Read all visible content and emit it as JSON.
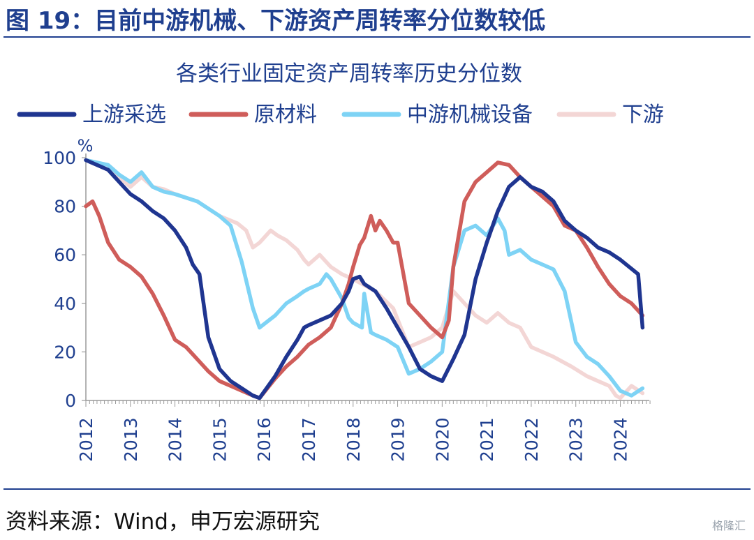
{
  "figure": {
    "title": "图 19：目前中游机械、下游资产周转率分位数较低",
    "source": "资料来源：Wind，申万宏源研究",
    "watermark": "格隆汇"
  },
  "chart_data": {
    "type": "line",
    "title": "各类行业固定资产周转率历史分位数",
    "xlabel": "",
    "ylabel": "%",
    "xlim": [
      2012,
      2024.65
    ],
    "ylim": [
      0,
      100
    ],
    "x_ticks": [
      "2012",
      "2013",
      "2014",
      "2015",
      "2016",
      "2017",
      "2018",
      "2019",
      "2020",
      "2021",
      "2022",
      "2023",
      "2024"
    ],
    "y_ticks": [
      "0",
      "20",
      "40",
      "60",
      "80",
      "100"
    ],
    "legend": "top",
    "grid": false,
    "series": [
      {
        "name": "上游采选",
        "color": "#1f3590",
        "x": [
          2012.0,
          2012.5,
          2012.75,
          2013.0,
          2013.25,
          2013.5,
          2013.75,
          2014.0,
          2014.25,
          2014.4,
          2014.55,
          2014.75,
          2015.0,
          2015.25,
          2015.5,
          2015.75,
          2015.9,
          2016.25,
          2016.5,
          2016.75,
          2016.9,
          2017.0,
          2017.25,
          2017.5,
          2017.75,
          2017.9,
          2018.0,
          2018.15,
          2018.25,
          2018.5,
          2018.75,
          2019.0,
          2019.25,
          2019.5,
          2019.75,
          2020.0,
          2020.25,
          2020.5,
          2020.75,
          2021.0,
          2021.25,
          2021.5,
          2021.75,
          2022.0,
          2022.25,
          2022.5,
          2022.75,
          2023.0,
          2023.25,
          2023.5,
          2023.75,
          2024.0,
          2024.2,
          2024.4,
          2024.5
        ],
        "values": [
          99,
          95,
          90,
          85,
          82,
          78,
          75,
          70,
          63,
          56,
          52,
          26,
          13,
          8,
          5,
          2,
          1,
          10,
          18,
          25,
          30,
          31,
          33,
          35,
          40,
          45,
          50,
          51,
          48,
          45,
          38,
          30,
          22,
          13,
          10,
          8,
          17,
          27,
          50,
          65,
          78,
          88,
          92,
          88,
          86,
          82,
          74,
          70,
          67,
          63,
          61,
          58,
          55,
          52,
          30
        ]
      },
      {
        "name": "原材料",
        "color": "#cf5d5a",
        "x": [
          2012.0,
          2012.15,
          2012.3,
          2012.5,
          2012.75,
          2013.0,
          2013.25,
          2013.5,
          2013.75,
          2014.0,
          2014.25,
          2014.5,
          2014.75,
          2015.0,
          2015.25,
          2015.5,
          2015.75,
          2015.9,
          2016.25,
          2016.5,
          2016.75,
          2017.0,
          2017.25,
          2017.5,
          2017.75,
          2017.9,
          2018.0,
          2018.15,
          2018.25,
          2018.4,
          2018.5,
          2018.6,
          2018.75,
          2018.9,
          2019.0,
          2019.25,
          2019.5,
          2019.75,
          2020.0,
          2020.15,
          2020.25,
          2020.5,
          2020.75,
          2021.0,
          2021.25,
          2021.5,
          2021.75,
          2022.0,
          2022.25,
          2022.5,
          2022.75,
          2023.0,
          2023.25,
          2023.5,
          2023.75,
          2024.0,
          2024.25,
          2024.5
        ],
        "values": [
          80,
          82,
          76,
          65,
          58,
          55,
          51,
          44,
          35,
          25,
          22,
          17,
          12,
          8,
          6,
          4,
          2,
          1,
          9,
          14,
          18,
          23,
          26,
          30,
          40,
          48,
          55,
          64,
          67,
          76,
          70,
          74,
          70,
          65,
          65,
          40,
          35,
          30,
          26,
          33,
          55,
          82,
          90,
          94,
          98,
          97,
          92,
          88,
          84,
          80,
          72,
          70,
          63,
          55,
          48,
          43,
          40,
          35
        ]
      },
      {
        "name": "中游机械设备",
        "color": "#7ed3f5",
        "x": [
          2012.0,
          2012.5,
          2012.75,
          2013.0,
          2013.25,
          2013.5,
          2013.75,
          2014.0,
          2014.5,
          2015.0,
          2015.25,
          2015.5,
          2015.75,
          2015.9,
          2016.25,
          2016.5,
          2016.75,
          2016.9,
          2017.0,
          2017.25,
          2017.4,
          2017.5,
          2017.75,
          2017.9,
          2018.0,
          2018.2,
          2018.25,
          2018.4,
          2018.5,
          2018.75,
          2019.0,
          2019.25,
          2019.5,
          2019.75,
          2020.0,
          2020.25,
          2020.5,
          2020.75,
          2021.0,
          2021.25,
          2021.4,
          2021.5,
          2021.75,
          2022.0,
          2022.25,
          2022.5,
          2022.75,
          2023.0,
          2023.25,
          2023.5,
          2023.75,
          2024.0,
          2024.25,
          2024.5
        ],
        "values": [
          99,
          97,
          93,
          90,
          94,
          88,
          86,
          85,
          82,
          76,
          72,
          57,
          38,
          30,
          35,
          40,
          43,
          45,
          46,
          48,
          52,
          50,
          42,
          34,
          32,
          30,
          44,
          28,
          27,
          25,
          22,
          11,
          13,
          16,
          20,
          55,
          70,
          72,
          68,
          75,
          70,
          60,
          62,
          58,
          56,
          54,
          45,
          24,
          18,
          15,
          10,
          4,
          2,
          5
        ]
      },
      {
        "name": "下游",
        "color": "#f3d6d5",
        "x": [
          2012.0,
          2012.5,
          2012.75,
          2013.0,
          2013.25,
          2013.5,
          2013.75,
          2014.0,
          2014.5,
          2015.0,
          2015.4,
          2015.6,
          2015.75,
          2015.9,
          2016.15,
          2016.3,
          2016.5,
          2016.75,
          2016.9,
          2017.0,
          2017.25,
          2017.5,
          2017.75,
          2018.0,
          2018.5,
          2018.9,
          2019.25,
          2019.5,
          2019.75,
          2020.0,
          2020.25,
          2020.5,
          2020.75,
          2021.0,
          2021.25,
          2021.5,
          2021.75,
          2022.0,
          2022.5,
          2022.9,
          2023.25,
          2023.5,
          2023.75,
          2023.9,
          2024.0,
          2024.25,
          2024.5
        ],
        "values": [
          99,
          95,
          92,
          88,
          92,
          88,
          87,
          85,
          82,
          76,
          73,
          70,
          63,
          65,
          70,
          68,
          66,
          62,
          58,
          56,
          60,
          55,
          52,
          50,
          45,
          38,
          22,
          24,
          26,
          30,
          45,
          40,
          35,
          32,
          36,
          32,
          30,
          22,
          18,
          14,
          10,
          8,
          6,
          2,
          1,
          6,
          3
        ]
      }
    ]
  }
}
